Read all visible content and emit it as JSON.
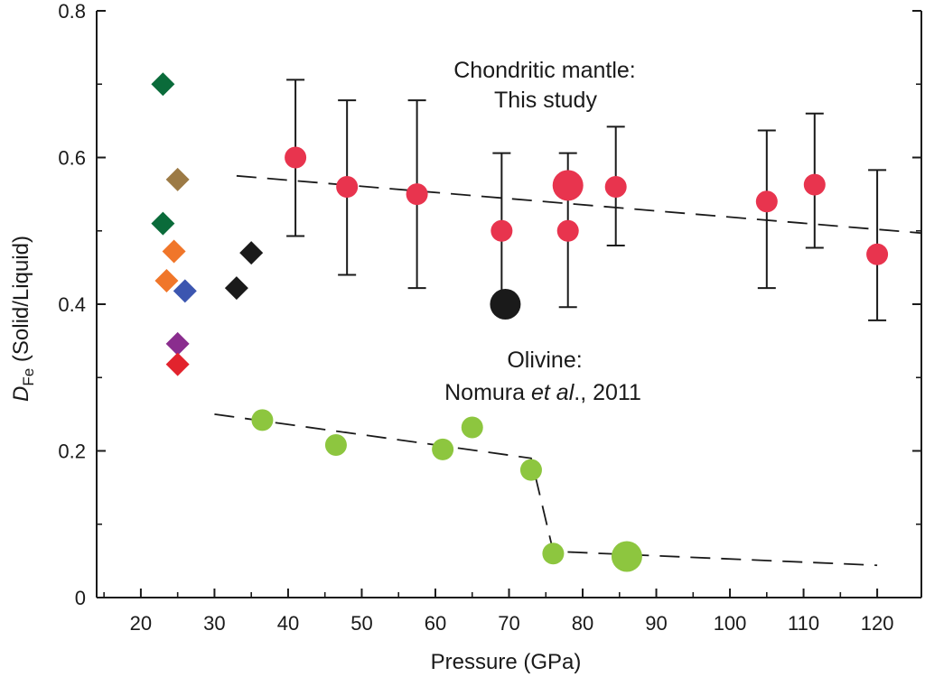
{
  "chart_data": {
    "type": "scatter",
    "xlabel": "Pressure (GPa)",
    "ylabel_main": "D",
    "ylabel_sub": "Fe",
    "ylabel_rest": " (Solid/Liquid)",
    "xlim": [
      14,
      126
    ],
    "ylim": [
      0,
      0.8
    ],
    "x_ticks": [
      20,
      30,
      40,
      50,
      60,
      70,
      80,
      90,
      100,
      110,
      120
    ],
    "y_ticks": [
      0,
      0.2,
      0.4,
      0.6,
      0.8
    ],
    "y_tick_labels": [
      "0",
      "0.2",
      "0.4",
      "0.6",
      "0.8"
    ],
    "grid": false,
    "annotations": {
      "chondritic_line1": "Chondritic mantle:",
      "chondritic_line2": "This study",
      "olivine_line1": "Olivine:",
      "olivine_author": "Nomura ",
      "olivine_etal": "et al",
      "olivine_year": "., 2011"
    },
    "series": [
      {
        "marker": "circle",
        "color": "#e8344e",
        "points": [
          {
            "x": 41,
            "y": 0.6,
            "err_low": 0.493,
            "err_high": 0.706
          },
          {
            "x": 48,
            "y": 0.56,
            "err_low": 0.44,
            "err_high": 0.678
          },
          {
            "x": 57.5,
            "y": 0.55,
            "err_low": 0.422,
            "err_high": 0.678
          },
          {
            "x": 69,
            "y": 0.5,
            "err_low": 0.4,
            "err_high": 0.606
          },
          {
            "x": 78,
            "y": 0.5,
            "err_low": 0.396,
            "err_high": 0.606
          },
          {
            "x": 84.5,
            "y": 0.56,
            "err_low": 0.48,
            "err_high": 0.642
          },
          {
            "x": 105,
            "y": 0.54,
            "err_low": 0.422,
            "err_high": 0.637
          },
          {
            "x": 111.5,
            "y": 0.563,
            "err_low": 0.477,
            "err_high": 0.66
          },
          {
            "x": 120,
            "y": 0.468,
            "err_low": 0.378,
            "err_high": 0.583
          },
          {
            "x": 78,
            "y": 0.562,
            "big": true
          }
        ],
        "trend": [
          [
            33,
            0.575
          ],
          [
            126,
            0.497
          ]
        ]
      },
      {
        "marker": "circle",
        "color": "#8dc63f",
        "points": [
          {
            "x": 36.5,
            "y": 0.242
          },
          {
            "x": 46.5,
            "y": 0.208
          },
          {
            "x": 61,
            "y": 0.202
          },
          {
            "x": 65,
            "y": 0.232
          },
          {
            "x": 73,
            "y": 0.174
          },
          {
            "x": 76,
            "y": 0.06
          },
          {
            "x": 86,
            "y": 0.056,
            "big": true
          }
        ],
        "trend": [
          [
            30,
            0.25
          ],
          [
            73,
            0.19
          ],
          [
            76,
            0.063
          ],
          [
            120,
            0.044
          ]
        ]
      },
      {
        "marker": "diamond",
        "points": [
          {
            "x": 23,
            "y": 0.7,
            "color": "#0a6b3a"
          },
          {
            "x": 25,
            "y": 0.57,
            "color": "#9c7a45"
          },
          {
            "x": 23,
            "y": 0.51,
            "color": "#0a6b3a"
          },
          {
            "x": 24.5,
            "y": 0.472,
            "color": "#f0762a"
          },
          {
            "x": 23.5,
            "y": 0.432,
            "color": "#f0762a"
          },
          {
            "x": 26,
            "y": 0.418,
            "color": "#3c56b0"
          },
          {
            "x": 25,
            "y": 0.346,
            "color": "#8a2d8e"
          },
          {
            "x": 25,
            "y": 0.318,
            "color": "#e2232d"
          },
          {
            "x": 35,
            "y": 0.47,
            "color": "#1a1a1a"
          },
          {
            "x": 33,
            "y": 0.422,
            "color": "#1a1a1a"
          }
        ]
      },
      {
        "marker": "circle",
        "color": "#1a1a1a",
        "points": [
          {
            "x": 69.5,
            "y": 0.4,
            "big": true
          }
        ]
      }
    ]
  }
}
